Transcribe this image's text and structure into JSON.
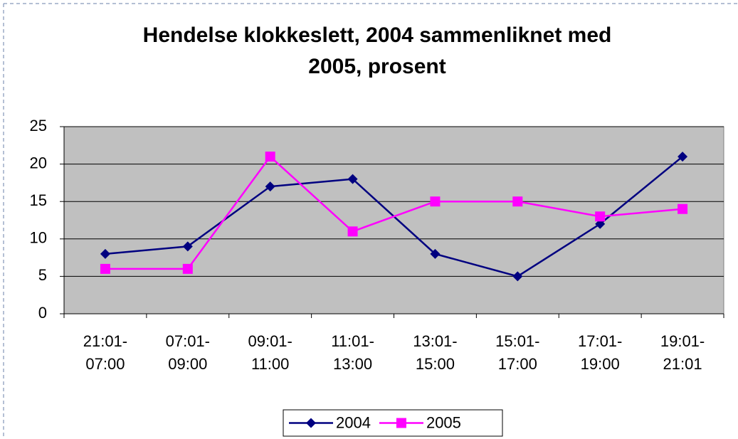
{
  "chart_data": {
    "type": "line",
    "title": "Hendelse klokkeslett, 2004 sammenliknet med 2005, prosent",
    "categories": [
      "21:01-07:00",
      "07:01-09:00",
      "09:01-11:00",
      "11:01-13:00",
      "13:01-15:00",
      "15:01-17:00",
      "17:01-19:00",
      "19:01-21:01"
    ],
    "series": [
      {
        "name": "2004",
        "color": "#000080",
        "marker": "diamond",
        "values": [
          8,
          9,
          17,
          18,
          8,
          5,
          12,
          21
        ]
      },
      {
        "name": "2005",
        "color": "#ff00ff",
        "marker": "square",
        "values": [
          6,
          6,
          21,
          11,
          15,
          15,
          13,
          14
        ]
      }
    ],
    "ylim": [
      0,
      25
    ],
    "yticks": [
      0,
      5,
      10,
      15,
      20,
      25
    ],
    "grid": true,
    "legend": "bottom"
  }
}
